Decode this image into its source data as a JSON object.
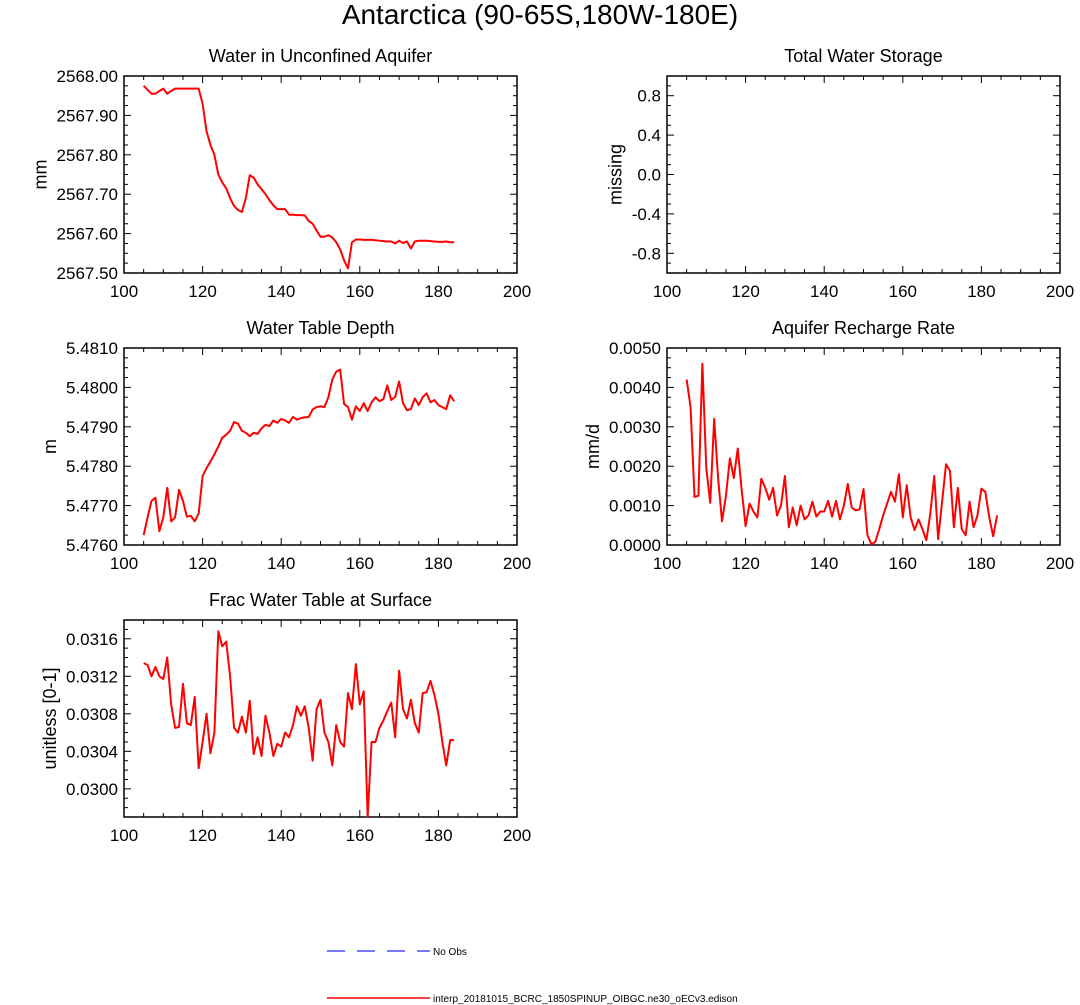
{
  "page_title": "Antarctica (90-65S,180W-180E)",
  "legend": {
    "entries": [
      {
        "label": "No Obs",
        "color": "#4d4dff",
        "style": "dashed"
      },
      {
        "label": "interp_20181015_BCRC_1850SPINUP_OIBGC.ne30_oECv3.edison",
        "color": "#ff0000",
        "style": "solid"
      }
    ]
  },
  "chart_data": [
    {
      "type": "line",
      "title": "Water in Unconfined Aquifer",
      "xlabel": "",
      "ylabel": "mm",
      "xlim": [
        100,
        200
      ],
      "ylim": [
        2567.5,
        2568.0
      ],
      "xticks": [
        100,
        120,
        140,
        160,
        180,
        200
      ],
      "yticks": [
        2567.5,
        2567.6,
        2567.7,
        2567.8,
        2567.9,
        2568.0
      ],
      "ytick_labels": [
        "2567.50",
        "2567.60",
        "2567.70",
        "2567.80",
        "2567.90",
        "2568.00"
      ],
      "series": [
        {
          "color": "#ff0000",
          "x": [
            105,
            106,
            107,
            108,
            109,
            110,
            111,
            112,
            113,
            114,
            115,
            116,
            117,
            118,
            119,
            120,
            121,
            122,
            123,
            124,
            125,
            126,
            127,
            128,
            129,
            130,
            131,
            132,
            133,
            134,
            135,
            136,
            137,
            138,
            139,
            140,
            141,
            142,
            143,
            144,
            145,
            146,
            147,
            148,
            149,
            150,
            151,
            152,
            153,
            154,
            155,
            156,
            157,
            158,
            159,
            160,
            161,
            162,
            163,
            164,
            165,
            166,
            167,
            168,
            169,
            170,
            171,
            172,
            173,
            174,
            175,
            176,
            177,
            178,
            179,
            180,
            181,
            182,
            183,
            184
          ],
          "y": [
            2567.975,
            2567.965,
            2567.955,
            2567.955,
            2567.962,
            2567.968,
            2567.955,
            2567.962,
            2567.968,
            2567.968,
            2567.968,
            2567.968,
            2567.968,
            2567.968,
            2567.968,
            2567.93,
            2567.86,
            2567.825,
            2567.8,
            2567.75,
            2567.73,
            2567.715,
            2567.69,
            2567.67,
            2567.66,
            2567.655,
            2567.69,
            2567.748,
            2567.742,
            2567.725,
            2567.713,
            2567.7,
            2567.685,
            2567.672,
            2567.662,
            2567.662,
            2567.662,
            2567.648,
            2567.648,
            2567.647,
            2567.647,
            2567.646,
            2567.632,
            2567.625,
            2567.608,
            2567.592,
            2567.592,
            2567.596,
            2567.59,
            2567.578,
            2567.56,
            2567.532,
            2567.512,
            2567.578,
            2567.585,
            2567.585,
            2567.584,
            2567.584,
            2567.584,
            2567.583,
            2567.582,
            2567.581,
            2567.58,
            2567.58,
            2567.575,
            2567.582,
            2567.576,
            2567.58,
            2567.562,
            2567.58,
            2567.582,
            2567.582,
            2567.582,
            2567.581,
            2567.58,
            2567.579,
            2567.579,
            2567.58,
            2567.578,
            2567.578
          ]
        }
      ]
    },
    {
      "type": "line",
      "title": "Total Water Storage",
      "xlabel": "",
      "ylabel": "missing",
      "xlim": [
        100,
        200
      ],
      "ylim": [
        -1,
        1
      ],
      "xticks": [
        100,
        120,
        140,
        160,
        180,
        200
      ],
      "yticks": [
        -0.8,
        -0.4,
        0.0,
        0.4,
        0.8
      ],
      "ytick_labels": [
        "-0.8",
        "-0.4",
        "0.0",
        "0.4",
        "0.8"
      ],
      "series": []
    },
    {
      "type": "line",
      "title": "Water Table Depth",
      "xlabel": "",
      "ylabel": "m",
      "xlim": [
        100,
        200
      ],
      "ylim": [
        5.476,
        5.481
      ],
      "xticks": [
        100,
        120,
        140,
        160,
        180,
        200
      ],
      "yticks": [
        5.476,
        5.477,
        5.478,
        5.479,
        5.48,
        5.481
      ],
      "ytick_labels": [
        "5.4760",
        "5.4770",
        "5.4780",
        "5.4790",
        "5.4800",
        "5.4810"
      ],
      "series": [
        {
          "color": "#ff0000",
          "x": [
            105,
            106,
            107,
            108,
            109,
            110,
            111,
            112,
            113,
            114,
            115,
            116,
            117,
            118,
            119,
            120,
            121,
            122,
            123,
            124,
            125,
            126,
            127,
            128,
            129,
            130,
            131,
            132,
            133,
            134,
            135,
            136,
            137,
            138,
            139,
            140,
            141,
            142,
            143,
            144,
            145,
            146,
            147,
            148,
            149,
            150,
            151,
            152,
            153,
            154,
            155,
            156,
            157,
            158,
            159,
            160,
            161,
            162,
            163,
            164,
            165,
            166,
            167,
            168,
            169,
            170,
            171,
            172,
            173,
            174,
            175,
            176,
            177,
            178,
            179,
            180,
            181,
            182,
            183,
            184
          ],
          "y": [
            5.47625,
            5.4767,
            5.47712,
            5.4772,
            5.47635,
            5.4767,
            5.47745,
            5.4766,
            5.4767,
            5.4774,
            5.47712,
            5.47672,
            5.47674,
            5.4766,
            5.4768,
            5.47775,
            5.47795,
            5.47812,
            5.4783,
            5.4785,
            5.47872,
            5.4788,
            5.4789,
            5.47912,
            5.47908,
            5.4789,
            5.47885,
            5.47876,
            5.47885,
            5.47882,
            5.47896,
            5.47905,
            5.47902,
            5.47916,
            5.4791,
            5.4792,
            5.47916,
            5.4791,
            5.47925,
            5.47918,
            5.47922,
            5.47924,
            5.47925,
            5.47944,
            5.4795,
            5.47952,
            5.4795,
            5.47975,
            5.4802,
            5.4804,
            5.48045,
            5.47958,
            5.4795,
            5.47918,
            5.47952,
            5.4794,
            5.4796,
            5.4794,
            5.47962,
            5.47975,
            5.47965,
            5.4797,
            5.48005,
            5.47968,
            5.47976,
            5.48015,
            5.4796,
            5.47942,
            5.47945,
            5.47972,
            5.47955,
            5.47975,
            5.47985,
            5.47962,
            5.47968,
            5.47955,
            5.4795,
            5.47945,
            5.4798,
            5.47965
          ]
        }
      ]
    },
    {
      "type": "line",
      "title": "Aquifer Recharge Rate",
      "xlabel": "",
      "ylabel": "mm/d",
      "xlim": [
        100,
        200
      ],
      "ylim": [
        0.0,
        0.005
      ],
      "xticks": [
        100,
        120,
        140,
        160,
        180,
        200
      ],
      "yticks": [
        0.0,
        0.001,
        0.002,
        0.003,
        0.004,
        0.005
      ],
      "ytick_labels": [
        "0.0000",
        "0.0010",
        "0.0020",
        "0.0030",
        "0.0040",
        "0.0050"
      ],
      "series": [
        {
          "color": "#ff0000",
          "x": [
            105,
            106,
            107,
            108,
            109,
            110,
            111,
            112,
            113,
            114,
            115,
            116,
            117,
            118,
            119,
            120,
            121,
            122,
            123,
            124,
            125,
            126,
            127,
            128,
            129,
            130,
            131,
            132,
            133,
            134,
            135,
            136,
            137,
            138,
            139,
            140,
            141,
            142,
            143,
            144,
            145,
            146,
            147,
            148,
            149,
            150,
            151,
            152,
            153,
            154,
            155,
            156,
            157,
            158,
            159,
            160,
            161,
            162,
            163,
            164,
            165,
            166,
            167,
            168,
            169,
            170,
            171,
            172,
            173,
            174,
            175,
            176,
            177,
            178,
            179,
            180,
            181,
            182,
            183,
            184
          ],
          "y": [
            0.0042,
            0.0035,
            0.00122,
            0.00125,
            0.0046,
            0.00195,
            0.00107,
            0.0032,
            0.0017,
            0.0006,
            0.00125,
            0.0022,
            0.0017,
            0.00245,
            0.0014,
            0.00048,
            0.00105,
            0.00085,
            0.0007,
            0.00168,
            0.00145,
            0.00115,
            0.00145,
            0.00075,
            0.001,
            0.00175,
            0.00045,
            0.00095,
            0.0005,
            0.001,
            0.00065,
            0.00075,
            0.0011,
            0.00072,
            0.00085,
            0.00085,
            0.00112,
            0.00072,
            0.00112,
            0.00065,
            0.001,
            0.00155,
            0.00095,
            0.00088,
            0.0009,
            0.00142,
            0.00025,
            2e-05,
            8e-05,
            0.0004,
            0.00075,
            0.00105,
            0.00135,
            0.0011,
            0.0018,
            0.0007,
            0.00152,
            0.0007,
            0.00038,
            0.00065,
            0.0004,
            0.00012,
            0.0008,
            0.00175,
            0.00015,
            0.0011,
            0.00205,
            0.00188,
            0.00045,
            0.00145,
            0.0004,
            0.00025,
            0.0011,
            0.00045,
            0.00075,
            0.00143,
            0.00135,
            0.0007,
            0.00022,
            0.00075
          ]
        }
      ]
    },
    {
      "type": "line",
      "title": "Frac Water Table at Surface",
      "xlabel": "",
      "ylabel": "unitless [0-1]",
      "xlim": [
        100,
        200
      ],
      "ylim": [
        0.0297,
        0.0318
      ],
      "xticks": [
        100,
        120,
        140,
        160,
        180,
        200
      ],
      "yticks": [
        0.03,
        0.0304,
        0.0308,
        0.0312,
        0.0316
      ],
      "ytick_labels": [
        "0.0300",
        "0.0304",
        "0.0308",
        "0.0312",
        "0.0316"
      ],
      "series": [
        {
          "color": "#ff0000",
          "x": [
            105,
            106,
            107,
            108,
            109,
            110,
            111,
            112,
            113,
            114,
            115,
            116,
            117,
            118,
            119,
            120,
            121,
            122,
            123,
            124,
            125,
            126,
            127,
            128,
            129,
            130,
            131,
            132,
            133,
            134,
            135,
            136,
            137,
            138,
            139,
            140,
            141,
            142,
            143,
            144,
            145,
            146,
            147,
            148,
            149,
            150,
            151,
            152,
            153,
            154,
            155,
            156,
            157,
            158,
            159,
            160,
            161,
            162,
            163,
            164,
            165,
            166,
            167,
            168,
            169,
            170,
            171,
            172,
            173,
            174,
            175,
            176,
            177,
            178,
            179,
            180,
            181,
            182,
            183,
            184
          ],
          "y": [
            0.03134,
            0.03132,
            0.0312,
            0.0313,
            0.0312,
            0.03117,
            0.0314,
            0.0309,
            0.03065,
            0.03066,
            0.03112,
            0.0307,
            0.03068,
            0.03098,
            0.03022,
            0.0305,
            0.0308,
            0.03038,
            0.0306,
            0.03168,
            0.03152,
            0.03157,
            0.0312,
            0.03065,
            0.0306,
            0.03077,
            0.0306,
            0.03094,
            0.03037,
            0.03055,
            0.03035,
            0.03078,
            0.0306,
            0.03035,
            0.03048,
            0.03045,
            0.0306,
            0.03055,
            0.03068,
            0.03088,
            0.03078,
            0.03088,
            0.03065,
            0.0303,
            0.03085,
            0.03095,
            0.0306,
            0.0305,
            0.03025,
            0.03068,
            0.0305,
            0.03045,
            0.03102,
            0.03085,
            0.03133,
            0.0309,
            0.03104,
            0.0297,
            0.0305,
            0.0305,
            0.03065,
            0.03073,
            0.03083,
            0.03092,
            0.03055,
            0.03126,
            0.03085,
            0.03075,
            0.03095,
            0.0307,
            0.0306,
            0.03102,
            0.03103,
            0.03115,
            0.031,
            0.0308,
            0.0305,
            0.03025,
            0.03052,
            0.03052
          ]
        }
      ]
    }
  ]
}
